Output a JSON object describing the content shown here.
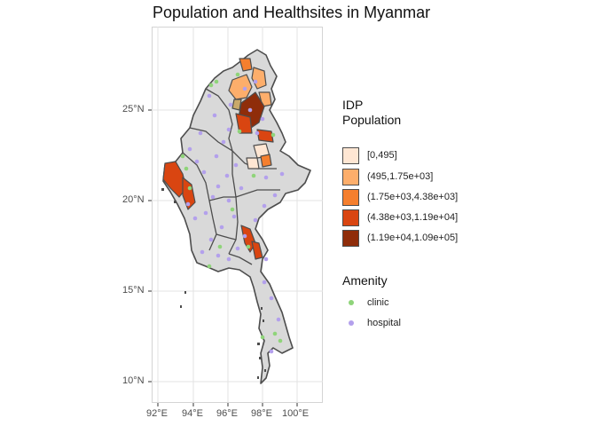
{
  "title": "Population and Healthsites in Myanmar",
  "axes": {
    "y_ticks": [
      "25°N",
      "20°N",
      "15°N",
      "10°N"
    ],
    "x_ticks": [
      "92°E",
      "94°E",
      "96°E",
      "98°E",
      "100°E"
    ]
  },
  "legend_fill": {
    "title_line1": "IDP",
    "title_line2": "Population",
    "items": [
      {
        "label": "[0,495]",
        "color": "#fee6d3"
      },
      {
        "label": "(495,1.75e+03]",
        "color": "#fdae6b"
      },
      {
        "label": "(1.75e+03,4.38e+03]",
        "color": "#f57f2e"
      },
      {
        "label": "(4.38e+03,1.19e+04]",
        "color": "#d94511"
      },
      {
        "label": "(1.19e+04,1.09e+05]",
        "color": "#8f2d0a"
      }
    ]
  },
  "legend_points": {
    "title": "Amenity",
    "items": [
      {
        "label": "clinic",
        "color": "#8fd47a"
      },
      {
        "label": "hospital",
        "color": "#b3a0ec"
      }
    ]
  },
  "map_colors": {
    "land": "#d9d9d9",
    "border": "#4d4d4d"
  }
}
